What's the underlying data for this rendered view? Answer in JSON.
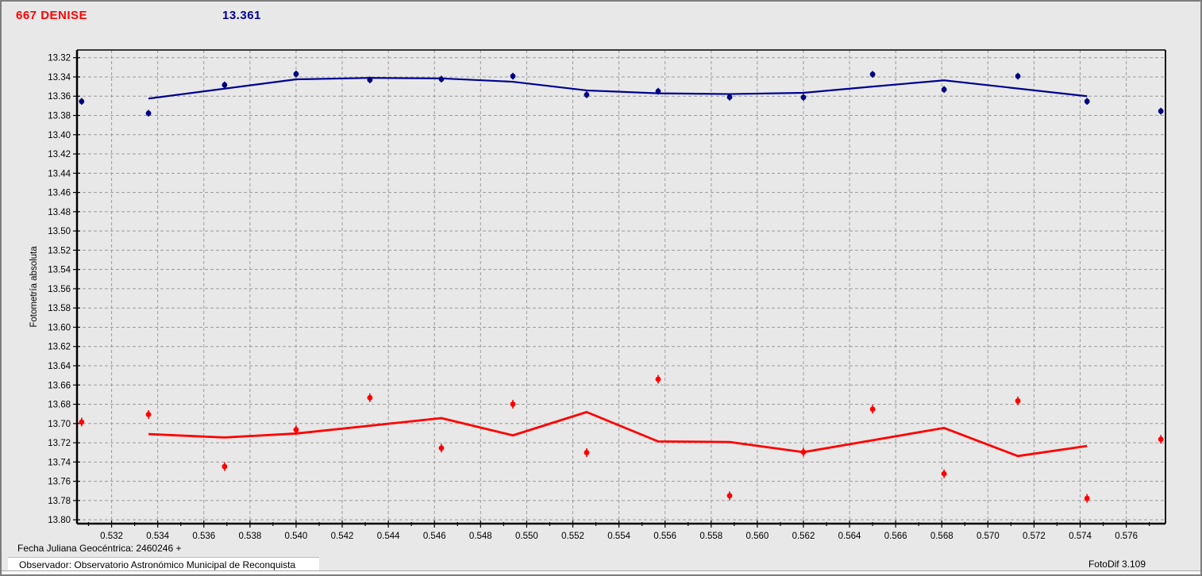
{
  "header": {
    "object_name": "667 DENISE",
    "mean_magnitude": "13.361"
  },
  "footer": {
    "julian_date": "Fecha Juliana Geocéntrica: 2460246 +",
    "observer": "Observador: Observatorio Astronómico Municipal de Reconquista",
    "app_version": "FotoDif 3.109"
  },
  "chart_data": {
    "type": "scatter",
    "title": "667 DENISE",
    "mean_magnitude": 13.361,
    "xlabel": "",
    "ylabel": "Fotometría absoluta",
    "x_axis_note": "fraction of Julian Date 2460246",
    "xlim": [
      0.5305,
      0.5777
    ],
    "ylim": [
      13.312,
      13.804
    ],
    "y_inverted": true,
    "grid": "dashed",
    "legend": "none",
    "grid_color": "#9b9b9b",
    "frame_color": "#000000",
    "background_color": "#e8e8e8",
    "x_ticks": [
      "0.532",
      "0.534",
      "0.536",
      "0.538",
      "0.540",
      "0.542",
      "0.544",
      "0.546",
      "0.548",
      "0.550",
      "0.552",
      "0.554",
      "0.556",
      "0.558",
      "0.560",
      "0.562",
      "0.564",
      "0.566",
      "0.568",
      "0.570",
      "0.572",
      "0.574",
      "0.576"
    ],
    "x_minor_step": 0.001,
    "y_ticks": [
      "13.32",
      "13.34",
      "13.36",
      "13.38",
      "13.40",
      "13.42",
      "13.44",
      "13.46",
      "13.48",
      "13.50",
      "13.52",
      "13.54",
      "13.56",
      "13.58",
      "13.60",
      "13.62",
      "13.64",
      "13.66",
      "13.68",
      "13.70",
      "13.72",
      "13.74",
      "13.76",
      "13.78",
      "13.80"
    ],
    "series": [
      {
        "name": "absolute-photometry-blue",
        "color": "#000090",
        "point_color": "#000080",
        "error": 0.0035,
        "line_width": 2.2,
        "points": [
          [
            0.5307,
            13.3654
          ],
          [
            0.5336,
            13.3777
          ],
          [
            0.5369,
            13.3483
          ],
          [
            0.54,
            13.337
          ],
          [
            0.5432,
            13.3431
          ],
          [
            0.5463,
            13.3423
          ],
          [
            0.5494,
            13.3392
          ],
          [
            0.5526,
            13.3585
          ],
          [
            0.5557,
            13.3549
          ],
          [
            0.5588,
            13.361
          ],
          [
            0.562,
            13.3612
          ],
          [
            0.565,
            13.3373
          ],
          [
            0.5681,
            13.353
          ],
          [
            0.5713,
            13.3392
          ],
          [
            0.5743,
            13.3654
          ],
          [
            0.5775,
            13.3755
          ]
        ],
        "line": [
          [
            0.5336,
            13.3625
          ],
          [
            0.54,
            13.3425
          ],
          [
            0.5432,
            13.341
          ],
          [
            0.5463,
            13.3415
          ],
          [
            0.5494,
            13.345
          ],
          [
            0.5526,
            13.354
          ],
          [
            0.5557,
            13.357
          ],
          [
            0.5588,
            13.3578
          ],
          [
            0.562,
            13.3565
          ],
          [
            0.565,
            13.35
          ],
          [
            0.5681,
            13.3435
          ],
          [
            0.5743,
            13.36
          ]
        ]
      },
      {
        "name": "absolute-photometry-red",
        "color": "#ff0000",
        "point_color": "#ff0000",
        "error": 0.0045,
        "line_width": 2.8,
        "points": [
          [
            0.5307,
            13.6985
          ],
          [
            0.5336,
            13.6906
          ],
          [
            0.5369,
            13.7447
          ],
          [
            0.54,
            13.7065
          ],
          [
            0.5432,
            13.6732
          ],
          [
            0.5463,
            13.7255
          ],
          [
            0.5494,
            13.6799
          ],
          [
            0.5526,
            13.7302
          ],
          [
            0.5557,
            13.654
          ],
          [
            0.5588,
            13.775
          ],
          [
            0.562,
            13.7297
          ],
          [
            0.565,
            13.6851
          ],
          [
            0.5681,
            13.7522
          ],
          [
            0.5713,
            13.6765
          ],
          [
            0.5743,
            13.7778
          ],
          [
            0.5775,
            13.7164
          ]
        ],
        "line": [
          [
            0.5336,
            13.711
          ],
          [
            0.5369,
            13.7145
          ],
          [
            0.54,
            13.7104
          ],
          [
            0.5463,
            13.6944
          ],
          [
            0.5494,
            13.7123
          ],
          [
            0.5526,
            13.6881
          ],
          [
            0.5557,
            13.7186
          ],
          [
            0.5588,
            13.7192
          ],
          [
            0.562,
            13.7297
          ],
          [
            0.5681,
            13.7046
          ],
          [
            0.5713,
            13.7338
          ],
          [
            0.5743,
            13.7233
          ]
        ]
      }
    ]
  }
}
